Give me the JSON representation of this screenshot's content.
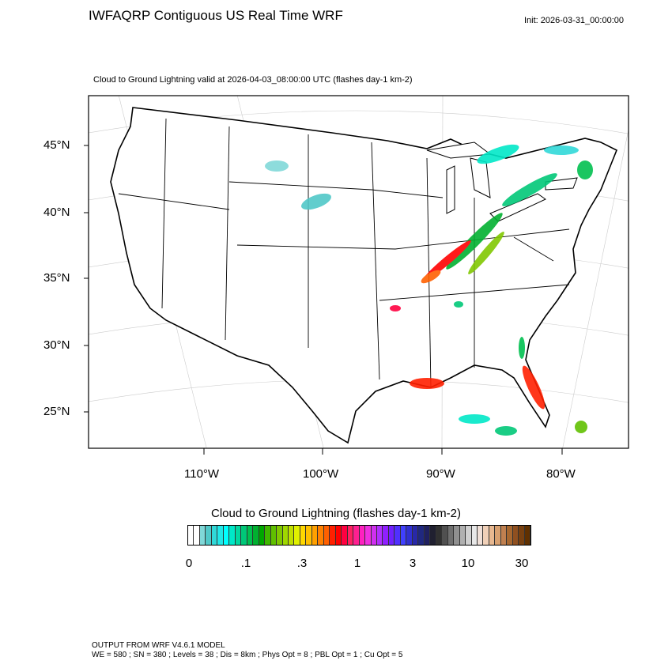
{
  "header": {
    "title": "IWFAQRP Contiguous US Real Time WRF",
    "init": "Init: 2026-03-31_00:00:00",
    "subtitle": "Cloud to Ground Lightning valid at 2026-04-03_08:00:00 UTC   (flashes day-1 km-2)"
  },
  "map": {
    "projection": "Lambert conformal",
    "lat_labels": [
      "45°N",
      "40°N",
      "35°N",
      "30°N",
      "25°N"
    ],
    "lon_labels": [
      "110°W",
      "100°W",
      "90°W",
      "80°W"
    ]
  },
  "colorbar": {
    "title": "Cloud to Ground Lightning  (flashes day-1 km-2)",
    "labels": [
      "0",
      ".1",
      ".3",
      "1",
      "3",
      "10",
      "30"
    ],
    "colors": [
      "#ffffff",
      "#ffffff",
      "#80d8d8",
      "#50c8c8",
      "#30d8d8",
      "#20e8e8",
      "#00ffff",
      "#00e8c8",
      "#00d8a0",
      "#00c878",
      "#00c050",
      "#00b030",
      "#00a800",
      "#40b800",
      "#60c000",
      "#80c800",
      "#a0d800",
      "#c0e000",
      "#e0f000",
      "#ffd800",
      "#ffc000",
      "#ffa000",
      "#ff8000",
      "#ff6000",
      "#ff2000",
      "#ff0000",
      "#ff0040",
      "#ff2060",
      "#ff2090",
      "#ff20c0",
      "#f030e0",
      "#d030f0",
      "#b030ff",
      "#9020ff",
      "#7020ff",
      "#5030ff",
      "#4040ff",
      "#3030d0",
      "#2828a8",
      "#202880",
      "#202060",
      "#202030",
      "#303030",
      "#505050",
      "#707070",
      "#909090",
      "#b0b0b0",
      "#d0d0d0",
      "#e8e8e8",
      "#f0e0d8",
      "#f0d0b8",
      "#e8b890",
      "#d8a070",
      "#c08050",
      "#a86830",
      "#905020",
      "#784010",
      "#603000"
    ]
  },
  "footer": {
    "line1": "OUTPUT FROM WRF V4.6.1 MODEL",
    "line2": "WE = 580 ; SN = 380 ; Levels = 38 ; Dis = 8km ; Phys Opt = 8 ; PBL Opt = 1 ; Cu Opt = 5"
  }
}
